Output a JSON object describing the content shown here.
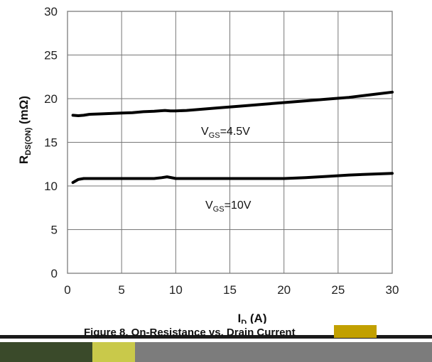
{
  "chart_data": {
    "type": "line",
    "xlabel": {
      "main": "I",
      "sub": "D",
      "suffix": " (A)"
    },
    "ylabel": {
      "main": "R",
      "sub": "DS(ON)",
      "suffix": " (mΩ)"
    },
    "xlim": [
      0,
      30
    ],
    "ylim": [
      0,
      30
    ],
    "x_ticks": [
      "0",
      "5",
      "10",
      "15",
      "20",
      "25",
      "30"
    ],
    "y_ticks": [
      "0",
      "5",
      "10",
      "15",
      "20",
      "25",
      "30"
    ],
    "grid": true,
    "series": [
      {
        "annotation": {
          "main": "V",
          "sub": "GS",
          "suffix": "=4.5V"
        },
        "x": [
          0.5,
          1,
          1.5,
          2,
          3,
          4,
          5,
          6,
          7,
          8,
          9,
          9.5,
          10,
          11,
          12,
          14,
          16,
          18,
          20,
          22,
          24,
          26,
          28,
          30
        ],
        "y": [
          18.1,
          18.05,
          18.1,
          18.2,
          18.25,
          18.3,
          18.35,
          18.4,
          18.5,
          18.55,
          18.65,
          18.6,
          18.6,
          18.65,
          18.75,
          18.95,
          19.15,
          19.35,
          19.55,
          19.75,
          19.95,
          20.15,
          20.45,
          20.75
        ]
      },
      {
        "annotation": {
          "main": "V",
          "sub": "GS",
          "suffix": "=10V"
        },
        "x": [
          0.5,
          1,
          1.5,
          2,
          4,
          6,
          8,
          8.7,
          9.2,
          9.8,
          10,
          12,
          14,
          16,
          18,
          20,
          22,
          24,
          26,
          28,
          30
        ],
        "y": [
          10.4,
          10.75,
          10.85,
          10.85,
          10.85,
          10.85,
          10.85,
          10.95,
          11.05,
          10.9,
          10.85,
          10.85,
          10.85,
          10.85,
          10.85,
          10.85,
          10.95,
          11.1,
          11.25,
          11.35,
          11.45
        ]
      }
    ]
  },
  "caption": {
    "text": "Figure 8. On-Resistance vs. Drain Current"
  }
}
